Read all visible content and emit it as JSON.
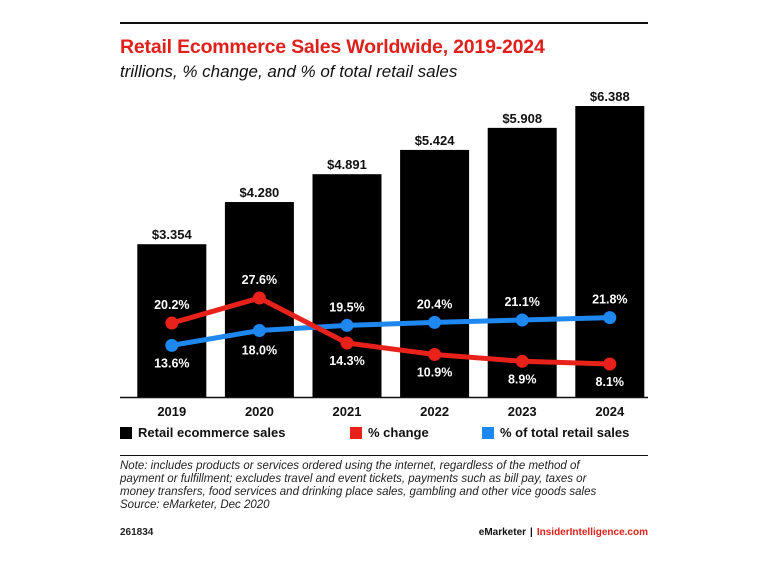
{
  "title": "Retail Ecommerce Sales Worldwide, 2019-2024",
  "subtitle": "trillions, % change, and % of total retail sales",
  "chart_data": {
    "type": "bar",
    "categories": [
      "2019",
      "2020",
      "2021",
      "2022",
      "2023",
      "2024"
    ],
    "series": [
      {
        "name": "Retail ecommerce sales",
        "type": "bar",
        "color": "#000000",
        "values": [
          3.354,
          4.28,
          4.891,
          5.424,
          5.908,
          6.388
        ],
        "labels": [
          "$3.354",
          "$4.280",
          "$4.891",
          "$5.424",
          "$5.908",
          "$6.388"
        ]
      },
      {
        "name": "% change",
        "type": "line",
        "color": "#e8221b",
        "values": [
          20.2,
          27.6,
          14.3,
          10.9,
          8.9,
          8.1
        ],
        "labels": [
          "20.2%",
          "27.6%",
          "14.3%",
          "10.9%",
          "8.9%",
          "8.1%"
        ]
      },
      {
        "name": "% of total retail sales",
        "type": "line",
        "color": "#1e88f0",
        "values": [
          13.6,
          18.0,
          19.5,
          20.4,
          21.1,
          21.8
        ],
        "labels": [
          "13.6%",
          "18.0%",
          "19.5%",
          "20.4%",
          "21.1%",
          "21.8%"
        ]
      }
    ]
  },
  "legend": [
    {
      "label": "Retail ecommerce sales",
      "color": "#000000"
    },
    {
      "label": "% change",
      "color": "#e8221b"
    },
    {
      "label": "% of total retail sales",
      "color": "#1e88f0"
    }
  ],
  "note": [
    "Note: includes products or services ordered using the internet, regardless of the method of",
    "payment or fulfillment; excludes travel and event tickets, payments such as bill pay, taxes or",
    "money transfers, food services and drinking place sales, gambling and other vice goods sales",
    "Source: eMarketer, Dec 2020"
  ],
  "footer": {
    "chart_id": "261834",
    "brand_a": "eMarketer",
    "separator": "|",
    "brand_b": "InsiderIntelligence.com"
  }
}
